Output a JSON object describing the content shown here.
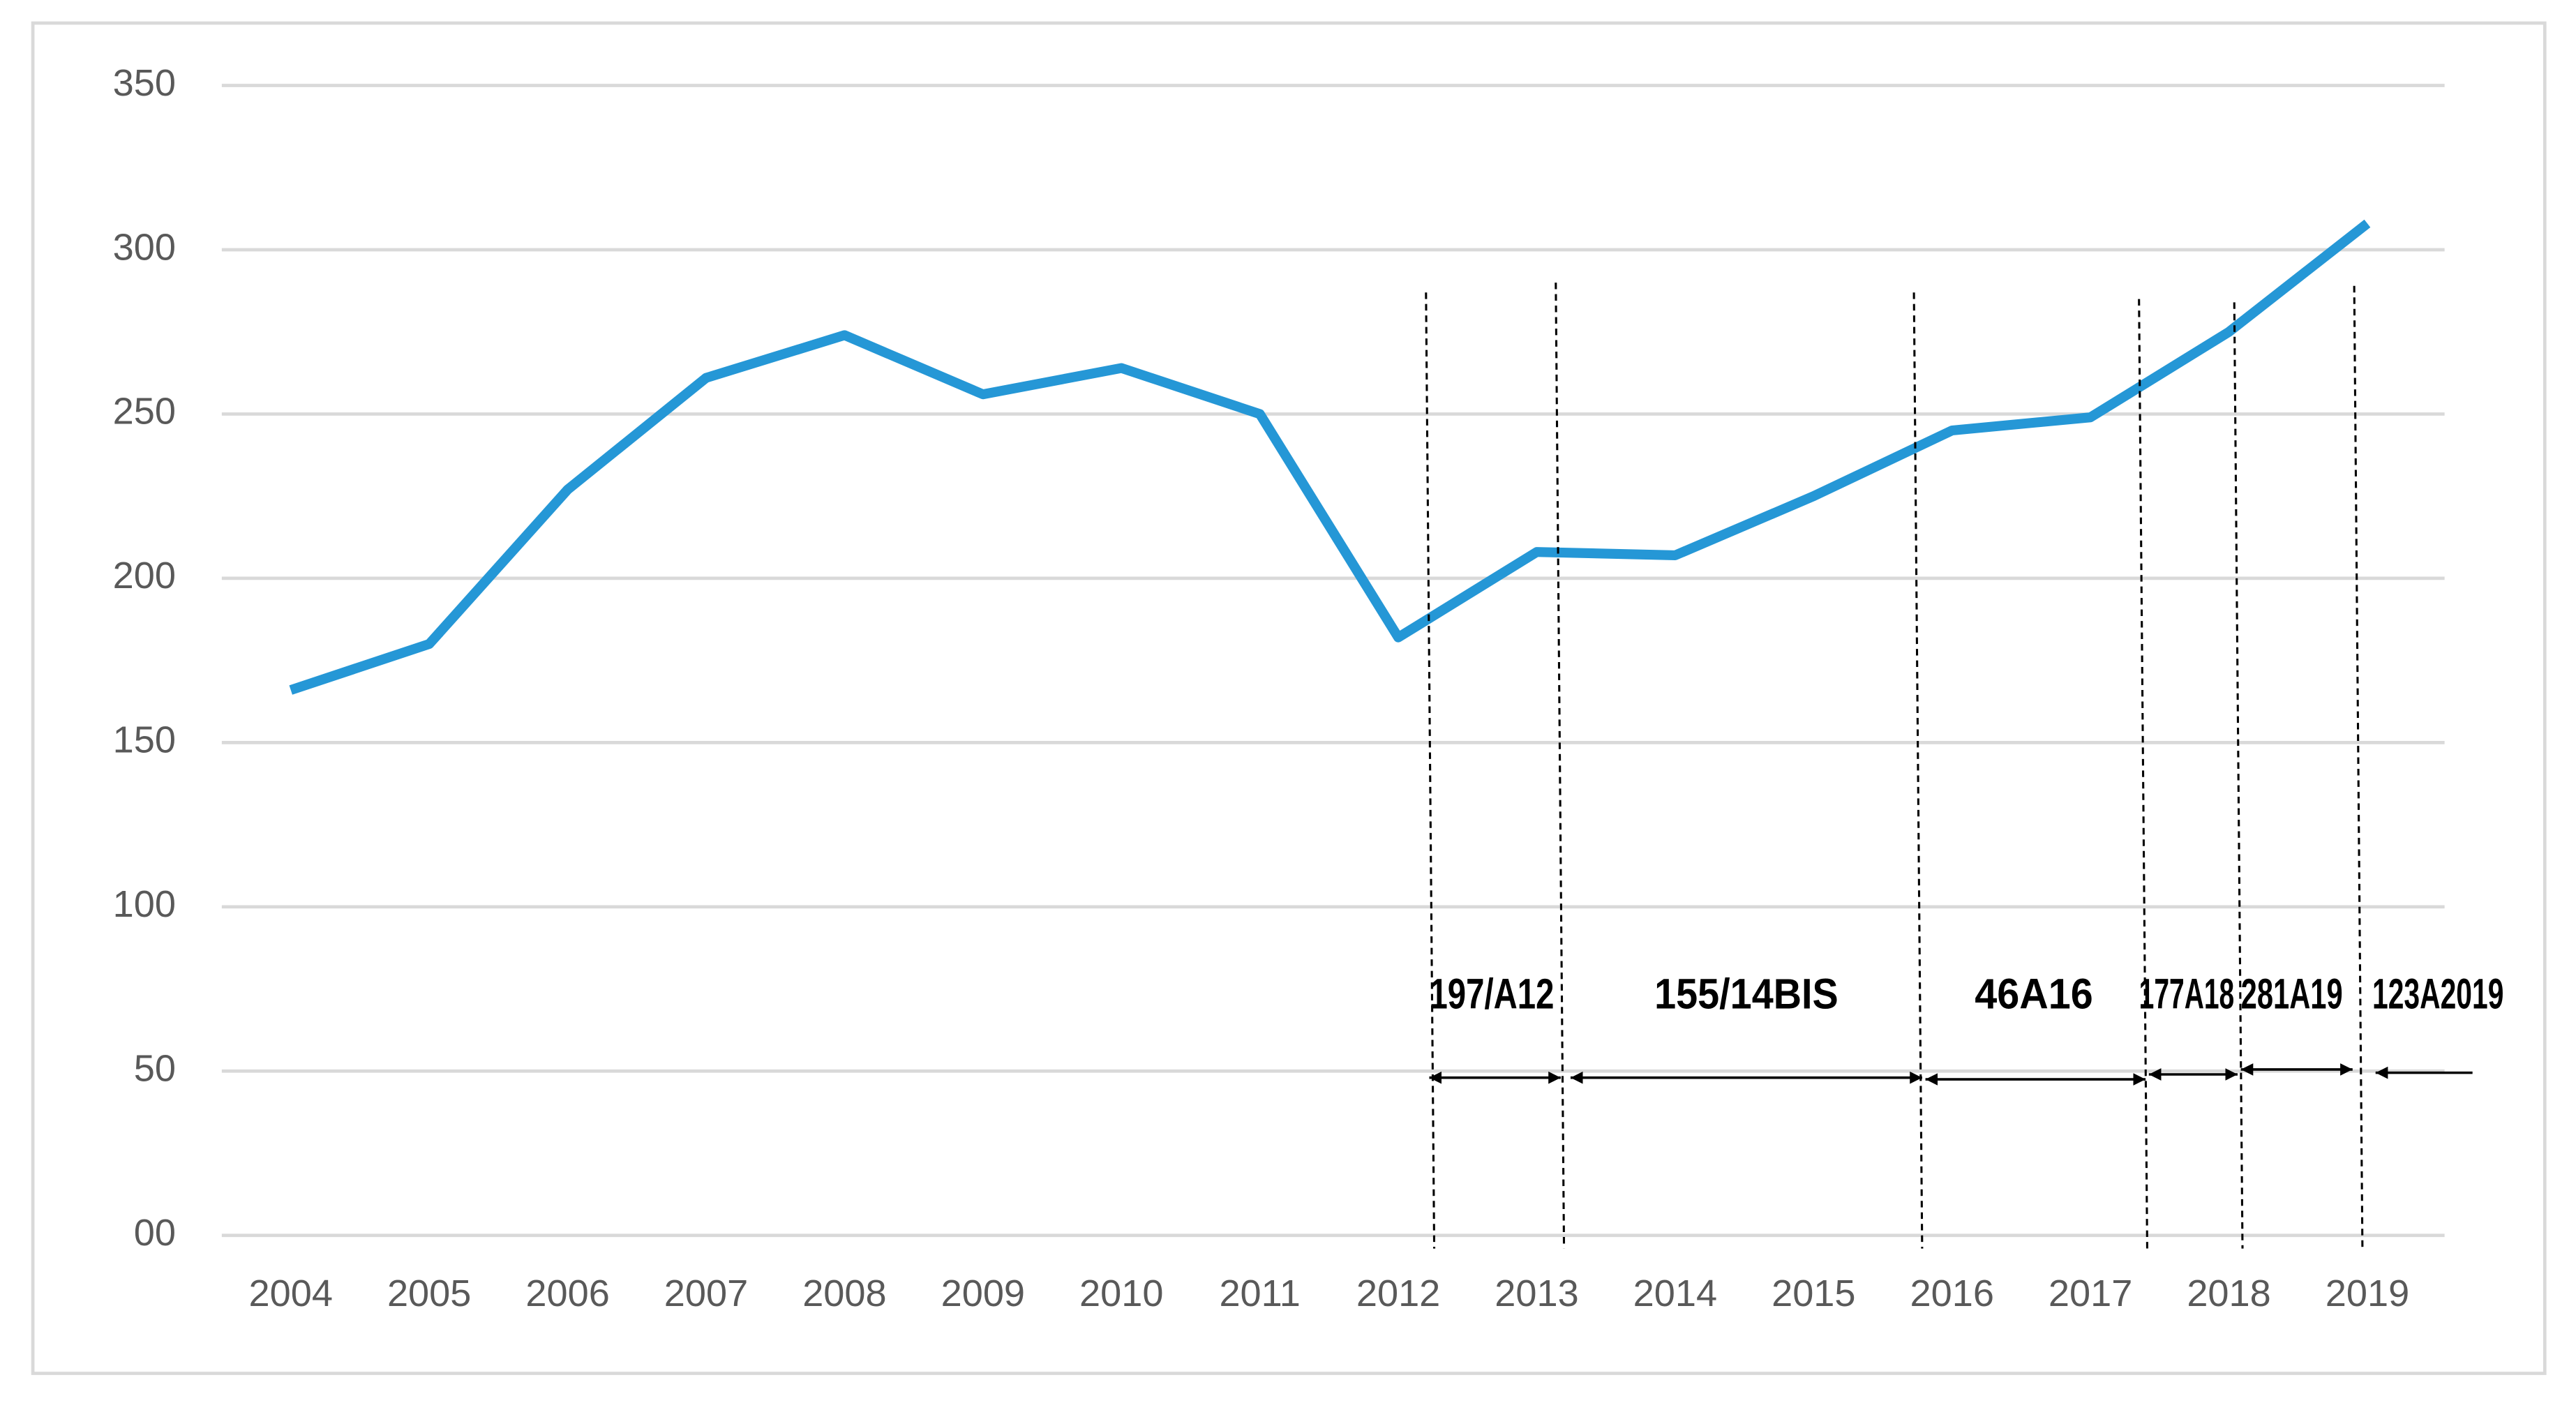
{
  "chart_data": {
    "type": "line",
    "categories": [
      "2004",
      "2005",
      "2006",
      "2007",
      "2008",
      "2009",
      "2010",
      "2011",
      "2012",
      "2013",
      "2014",
      "2015",
      "2016",
      "2017",
      "2018",
      "2019"
    ],
    "values": [
      166,
      180,
      227,
      261,
      274,
      256,
      264,
      250,
      182,
      208,
      207,
      225,
      245,
      249,
      275,
      308
    ],
    "color": "#2597d6",
    "ylim": [
      0,
      350
    ],
    "yticks": [
      {
        "value": 0,
        "label": "00"
      },
      50,
      100,
      150,
      200,
      250,
      300,
      350
    ],
    "grid": true,
    "annotations": [
      "197/A12",
      "155/14BIS",
      "46A16",
      "177A18",
      "281A19",
      "123A2019"
    ]
  }
}
